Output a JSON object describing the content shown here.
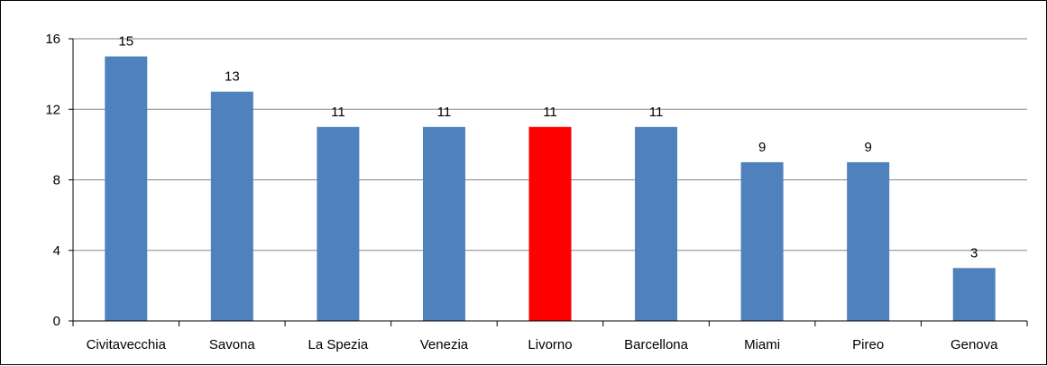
{
  "chart_data": {
    "type": "bar",
    "title": "",
    "xlabel": "",
    "ylabel": "",
    "categories": [
      "Civitavecchia",
      "Savona",
      "La Spezia",
      "Venezia",
      "Livorno",
      "Barcellona",
      "Miami",
      "Pireo",
      "Genova"
    ],
    "values": [
      15,
      13,
      11,
      11,
      11,
      11,
      9,
      9,
      3
    ],
    "ylim": [
      0,
      16
    ],
    "yticks": [
      "0",
      "4",
      "8",
      "12",
      "16"
    ],
    "ytick_values": [
      0,
      4,
      8,
      12,
      16
    ],
    "grid": true,
    "legend": "none",
    "colors": {
      "bar": "#4f81bd",
      "highlight_bar": "#ff0000",
      "gridline": "#868686",
      "axis": "#000000"
    },
    "highlight_category": "Livorno"
  }
}
